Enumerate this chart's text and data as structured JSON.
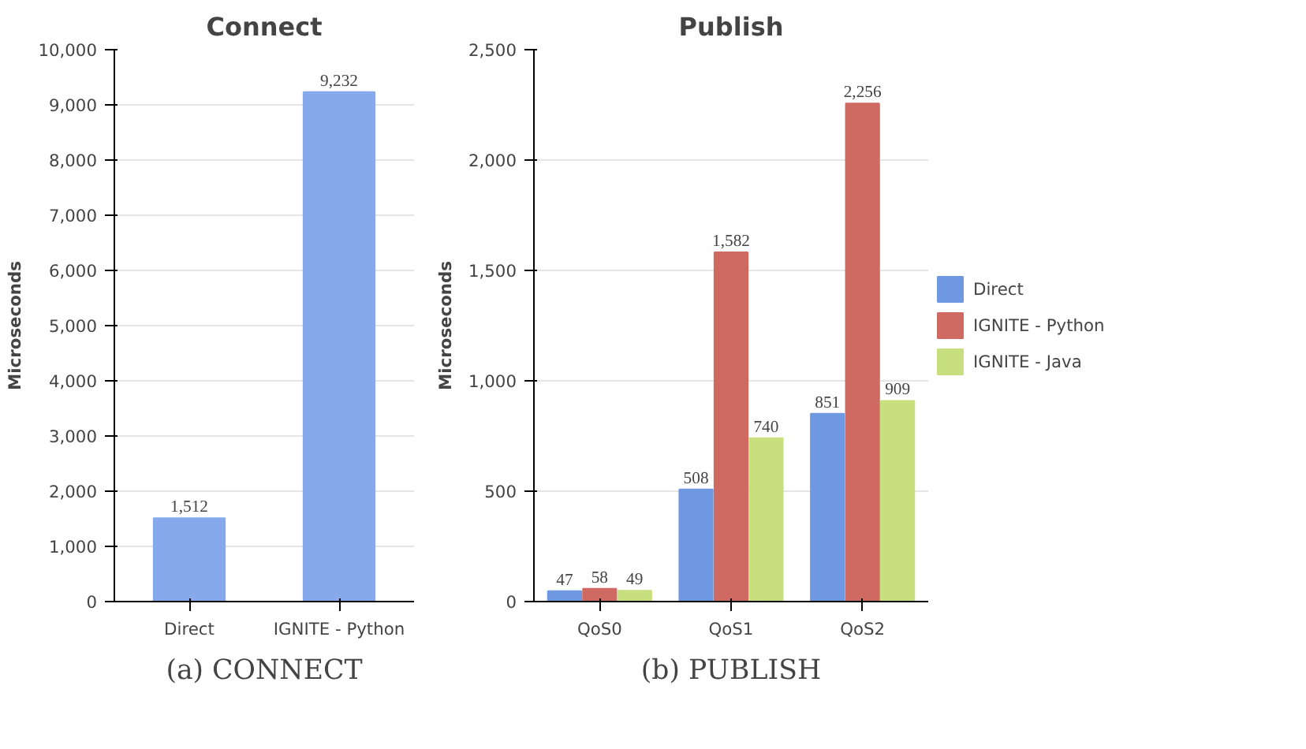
{
  "chart_data": [
    {
      "type": "bar",
      "title": "Connect",
      "ylabel": "Microseconds",
      "categories": [
        "Direct",
        "IGNITE - Python"
      ],
      "series": [
        {
          "color": "#86a9ec",
          "values": [
            1512,
            9232
          ],
          "value_labels": [
            "1,512",
            "9,232"
          ]
        }
      ],
      "ylim": [
        0,
        10000
      ],
      "yticks": [
        0,
        {
          "value": 1000,
          "label": "1,000"
        },
        {
          "value": 2000,
          "label": "2,000"
        },
        {
          "value": 3000,
          "label": "3,000"
        },
        {
          "value": 4000,
          "label": "4,000"
        },
        {
          "value": 5000,
          "label": "5,000"
        },
        {
          "value": 6000,
          "label": "6,000"
        },
        {
          "value": 7000,
          "label": "7,000"
        },
        {
          "value": 8000,
          "label": "8,000"
        },
        {
          "value": 9000,
          "label": "9,000"
        },
        {
          "value": 10000,
          "label": "10,000"
        }
      ],
      "grid": "y",
      "legend": false,
      "annotations": [
        "(a) CONNECT"
      ]
    },
    {
      "type": "bar",
      "title": "Publish",
      "ylabel": "Microseconds",
      "categories": [
        "QoS0",
        "QoS1",
        "QoS2"
      ],
      "series": [
        {
          "name": "Direct",
          "color": "#6f98e2",
          "values": [
            47,
            508,
            851
          ],
          "value_labels": [
            "47",
            "508",
            "851"
          ]
        },
        {
          "name": "IGNITE - Python",
          "color": "#cf6a62",
          "values": [
            58,
            1582,
            2256
          ],
          "value_labels": [
            "58",
            "1,582",
            "2,256"
          ]
        },
        {
          "name": "IGNITE - Java",
          "color": "#c8df7f",
          "values": [
            49,
            740,
            909
          ],
          "value_labels": [
            "49",
            "740",
            "909"
          ]
        }
      ],
      "ylim": [
        0,
        2500
      ],
      "yticks": [
        0,
        500,
        {
          "value": 1000,
          "label": "1,000"
        },
        {
          "value": 1500,
          "label": "1,500"
        },
        {
          "value": 2000,
          "label": "2,000"
        },
        {
          "value": 2500,
          "label": "2,500"
        }
      ],
      "grid": "y",
      "legend": "right",
      "annotations": [
        "(b) PUBLISH"
      ]
    }
  ]
}
